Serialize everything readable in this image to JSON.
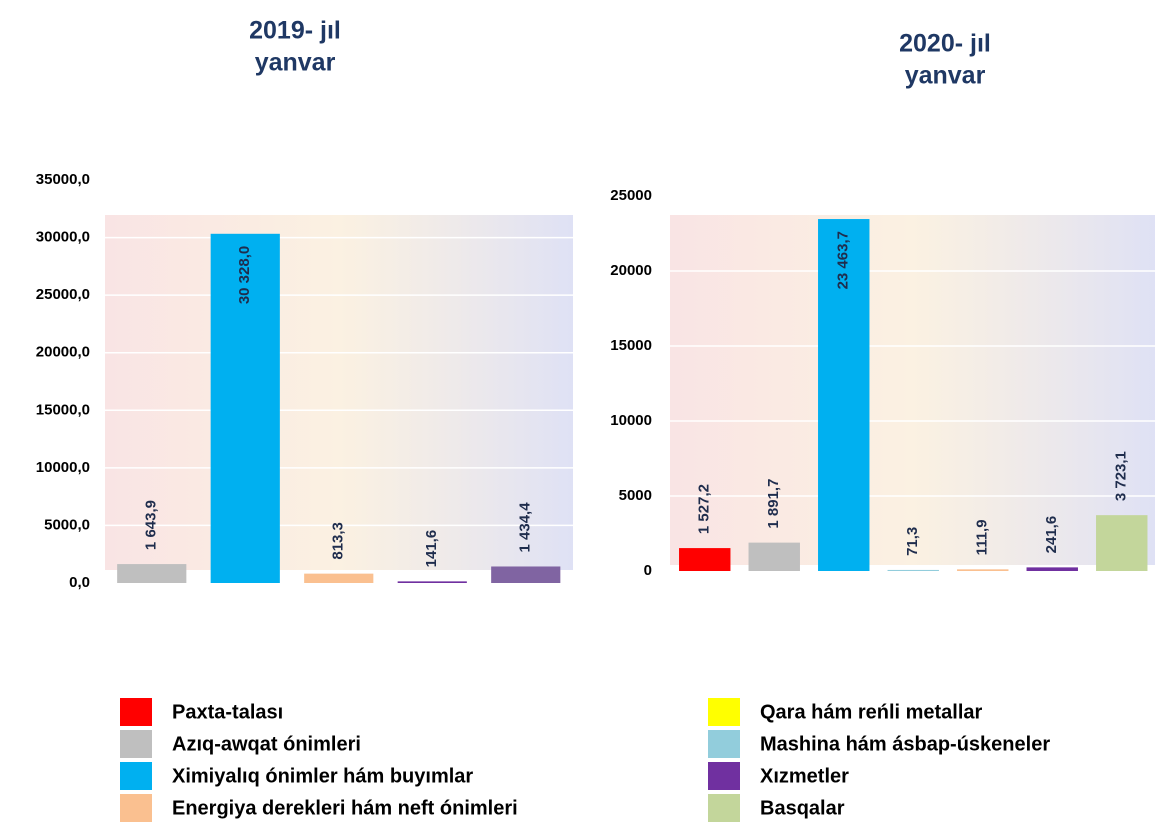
{
  "chart_data": [
    {
      "type": "bar",
      "title": [
        "2019- jıl",
        "yanvar"
      ],
      "values": [
        1643.9,
        30328.0,
        813.3,
        141.6,
        1434.4
      ],
      "value_labels": [
        "1 643,9",
        "30 328,0",
        "813,3",
        "141,6",
        "1 434,4"
      ],
      "colors": [
        "#bfbfbf",
        "#00b0f0",
        "#fac090",
        "#7030a0",
        "#8064a2"
      ],
      "ylim": [
        0,
        35000
      ],
      "yticks": [
        {
          "value": 0,
          "label": "0,0"
        },
        {
          "value": 5000,
          "label": "5000,0"
        },
        {
          "value": 10000,
          "label": "10000,0"
        },
        {
          "value": 15000,
          "label": "15000,0"
        },
        {
          "value": 20000,
          "label": "20000,0"
        },
        {
          "value": 25000,
          "label": "25000,0"
        },
        {
          "value": 30000,
          "label": "30000,0"
        },
        {
          "value": 35000,
          "label": "35000,0"
        }
      ],
      "grid": true
    },
    {
      "type": "bar",
      "title": [
        "2020- jıl",
        "yanvar"
      ],
      "values": [
        1527.2,
        1891.7,
        23463.7,
        71.3,
        111.9,
        241.6,
        3723.1
      ],
      "value_labels": [
        "1 527,2",
        "1 891,7",
        "23 463,7",
        "71,3",
        "111,9",
        "241,6",
        "3 723,1"
      ],
      "colors": [
        "#ff0000",
        "#bfbfbf",
        "#00b0f0",
        "#92cddc",
        "#fac090",
        "#7030a0",
        "#c3d69b"
      ],
      "ylim": [
        0,
        25000
      ],
      "yticks": [
        0,
        5000,
        10000,
        15000,
        20000,
        25000
      ],
      "grid": true
    }
  ],
  "legend": [
    {
      "name": "Paxta-talası",
      "color": "#ff0000"
    },
    {
      "name": "Azıq-awqat ónimleri",
      "color": "#bfbfbf"
    },
    {
      "name": "Ximiyalıq ónimler hám buyımlar",
      "color": "#00b0f0"
    },
    {
      "name": "Energiya derekleri hám neft ónimleri",
      "color": "#fac090"
    },
    {
      "name": "Qara hám reńli metallar",
      "color": "#ffff00"
    },
    {
      "name": "Mashina hám ásbap-úskeneler",
      "color": "#92cddc"
    },
    {
      "name": "Xızmetler",
      "color": "#7030a0"
    },
    {
      "name": "Basqalar",
      "color": "#c3d69b"
    }
  ]
}
